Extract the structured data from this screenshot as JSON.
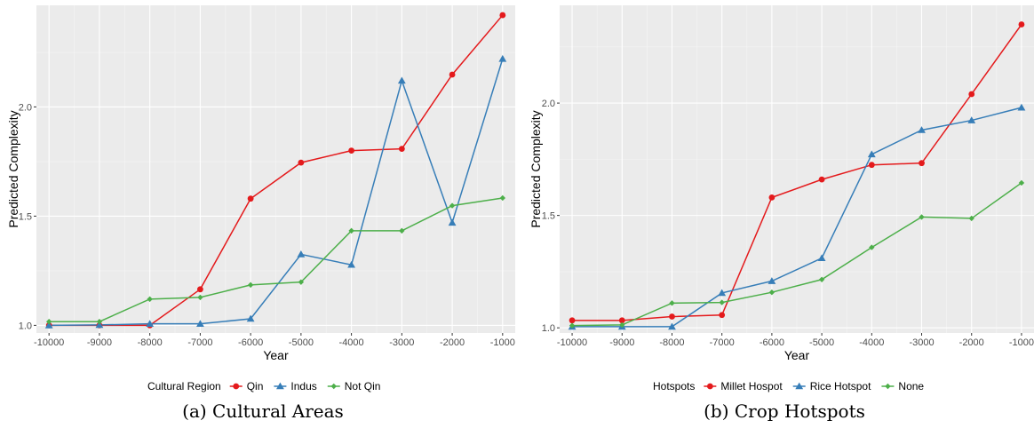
{
  "chart_data": [
    {
      "type": "line",
      "caption": "(a) Cultural Areas",
      "xlabel": "Year",
      "ylabel": "Predicted Complexity",
      "x": [
        -10000,
        -9000,
        -8000,
        -7000,
        -6000,
        -5000,
        -4000,
        -3000,
        -2000,
        -1000
      ],
      "xlim": [
        -10250,
        -750
      ],
      "ylim": [
        0.965,
        2.465
      ],
      "yticks": [
        1.0,
        1.5,
        2.0
      ],
      "ytick_labels": [
        "1.0",
        "1.5",
        "2.0"
      ],
      "xtick_labels": [
        "-10000",
        "-9000",
        "-8000",
        "-7000",
        "-6000",
        "-5000",
        "-4000",
        "-3000",
        "-2000",
        "-1000"
      ],
      "grid": true,
      "legend_title": "Cultural Region",
      "legend_position": "bottom",
      "series": [
        {
          "name": "Qin",
          "color": "#e41a1c",
          "marker": "circle",
          "values": [
            1.0,
            1.0,
            1.0,
            1.165,
            1.58,
            1.745,
            1.8,
            1.808,
            2.148,
            2.42
          ]
        },
        {
          "name": "Indus",
          "color": "#377eb8",
          "marker": "triangle",
          "values": [
            1.0,
            1.002,
            1.007,
            1.007,
            1.03,
            1.325,
            1.277,
            2.12,
            1.47,
            2.22
          ]
        },
        {
          "name": "Not Qin",
          "color": "#4daf4a",
          "marker": "diamond",
          "values": [
            1.017,
            1.017,
            1.12,
            1.128,
            1.185,
            1.198,
            1.433,
            1.433,
            1.548,
            1.583
          ]
        }
      ]
    },
    {
      "type": "line",
      "caption": "(b) Crop Hotspots",
      "xlabel": "Year",
      "ylabel": "Predicted Complexity",
      "x": [
        -10000,
        -9000,
        -8000,
        -7000,
        -6000,
        -5000,
        -4000,
        -3000,
        -2000,
        -1000
      ],
      "xlim": [
        -10250,
        -750
      ],
      "ylim": [
        0.977,
        2.435
      ],
      "yticks": [
        1.0,
        1.5,
        2.0
      ],
      "ytick_labels": [
        "1.0",
        "1.5",
        "2.0"
      ],
      "xtick_labels": [
        "-10000",
        "-9000",
        "-8000",
        "-7000",
        "-6000",
        "-5000",
        "-4000",
        "-3000",
        "-2000",
        "-1000"
      ],
      "grid": true,
      "legend_title": "Hotspots",
      "legend_position": "bottom",
      "series": [
        {
          "name": "Millet Hospot",
          "color": "#e41a1c",
          "marker": "circle",
          "values": [
            1.033,
            1.033,
            1.05,
            1.057,
            1.58,
            1.66,
            1.725,
            1.733,
            2.04,
            2.35
          ]
        },
        {
          "name": "Rice Hotspot",
          "color": "#377eb8",
          "marker": "triangle",
          "values": [
            1.005,
            1.005,
            1.005,
            1.155,
            1.208,
            1.31,
            1.772,
            1.88,
            1.923,
            1.98
          ]
        },
        {
          "name": "None",
          "color": "#4daf4a",
          "marker": "diamond",
          "values": [
            1.01,
            1.013,
            1.11,
            1.113,
            1.158,
            1.215,
            1.358,
            1.493,
            1.487,
            1.645
          ]
        }
      ]
    }
  ]
}
